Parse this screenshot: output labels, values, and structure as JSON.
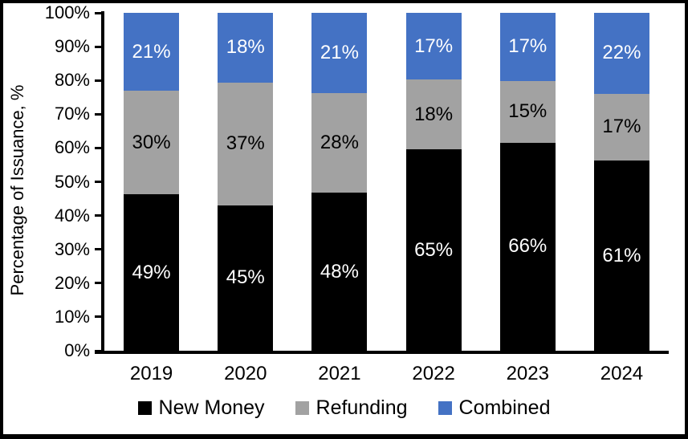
{
  "chart_data": {
    "type": "bar",
    "stacked": true,
    "percent_stacked": true,
    "title": "",
    "categories": [
      "2019",
      "2020",
      "2021",
      "2022",
      "2023",
      "2024"
    ],
    "series": [
      {
        "name": "New Money",
        "color": "#000000",
        "label_color": "#ffffff",
        "values": [
          49,
          45,
          48,
          65,
          66,
          61
        ],
        "labels": [
          "49%",
          "45%",
          "48%",
          "65%",
          "66%",
          "61%"
        ]
      },
      {
        "name": "Refunding",
        "color": "#A2A2A2",
        "label_color": "#000000",
        "values": [
          30,
          37,
          28,
          18,
          15,
          17
        ],
        "labels": [
          "30%",
          "37%",
          "28%",
          "18%",
          "15%",
          "17%"
        ]
      },
      {
        "name": "Combined",
        "color": "#4472C4",
        "label_color": "#ffffff",
        "values": [
          21,
          18,
          21,
          17,
          17,
          22
        ],
        "labels": [
          "21%",
          "18%",
          "21%",
          "17%",
          "17%",
          "22%"
        ]
      }
    ],
    "xlabel": "",
    "ylabel": "Percentage of Issuance, %",
    "ylim": [
      0,
      100
    ],
    "ytick_step": 10,
    "ytick_labels": [
      "0%",
      "10%",
      "20%",
      "30%",
      "40%",
      "50%",
      "60%",
      "70%",
      "80%",
      "90%",
      "100%"
    ],
    "legend": [
      "New Money",
      "Refunding",
      "Combined"
    ],
    "legend_position": "bottom",
    "grid": false,
    "axis_color": "#000000",
    "background_color": "#ffffff",
    "frame_color": "#000000"
  }
}
